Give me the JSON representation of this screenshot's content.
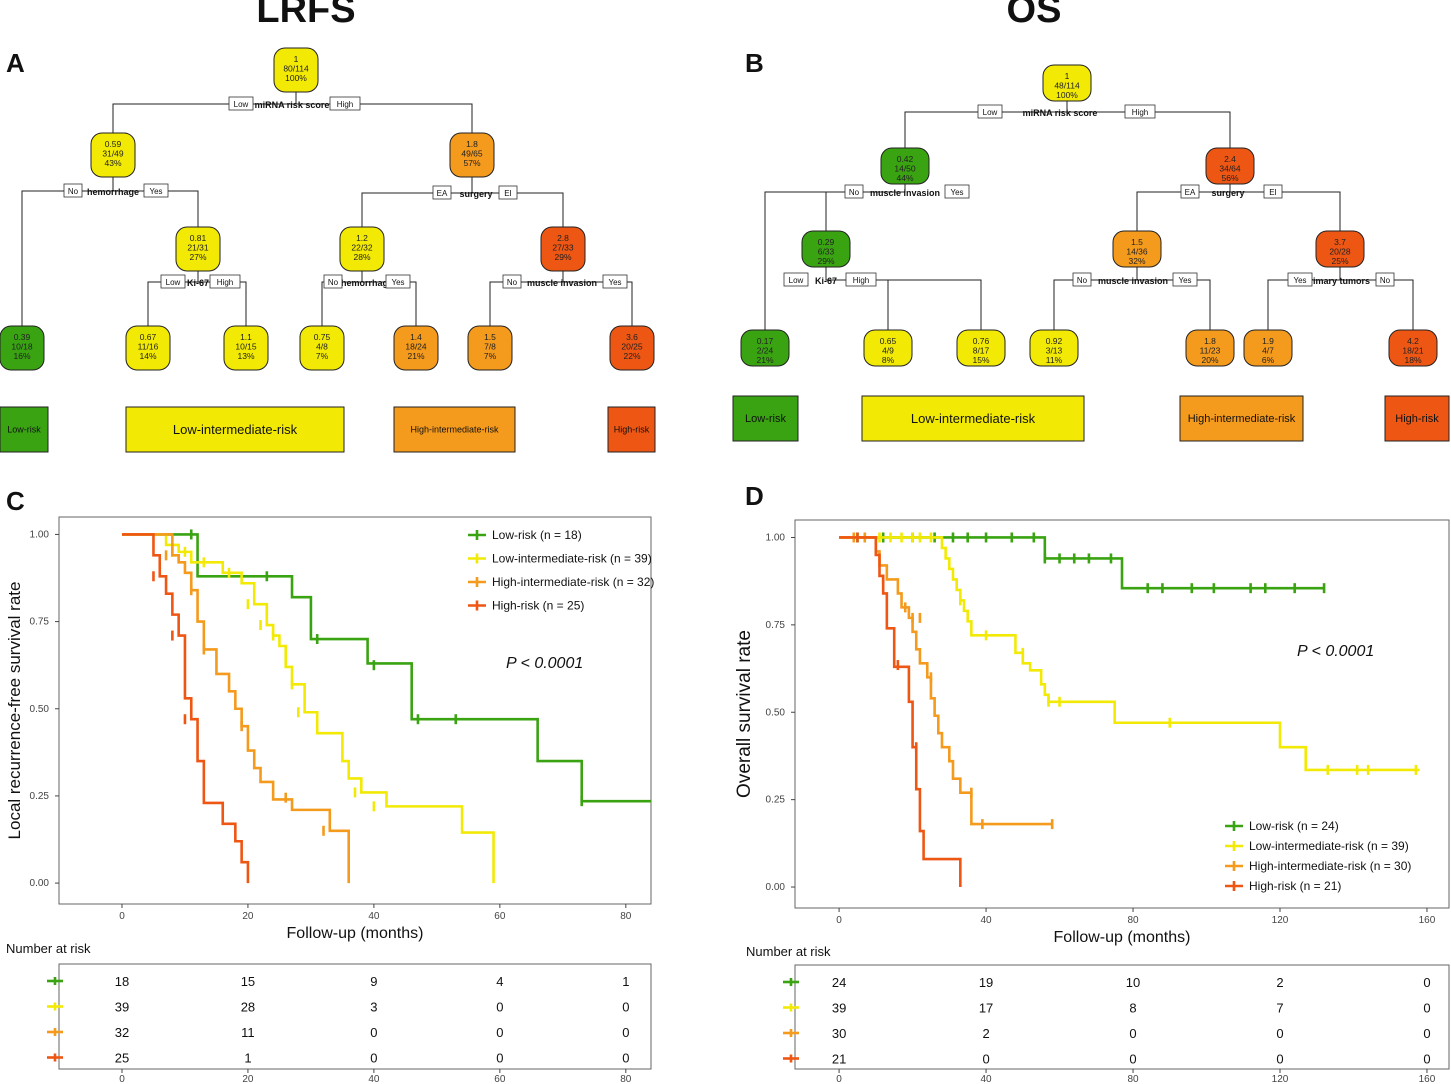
{
  "colors": {
    "low": "#3aa312",
    "lowint": "#f2ea05",
    "highint": "#f49a1d",
    "high": "#ee5614"
  },
  "titles": {
    "left": "LRFS",
    "right": "OS"
  },
  "panels": {
    "A": "A",
    "B": "B",
    "C": "C",
    "D": "D"
  },
  "treeA": {
    "nodes": [
      {
        "id": "a0",
        "lines": [
          "1",
          "80/114",
          "100%"
        ],
        "color": "lowint"
      },
      {
        "id": "a1",
        "lines": [
          "0.59",
          "31/49",
          "43%"
        ],
        "color": "lowint"
      },
      {
        "id": "a2",
        "lines": [
          "1.8",
          "49/65",
          "57%"
        ],
        "color": "highint"
      },
      {
        "id": "a3",
        "lines": [
          "0.81",
          "21/31",
          "27%"
        ],
        "color": "lowint"
      },
      {
        "id": "a4",
        "lines": [
          "1.2",
          "22/32",
          "28%"
        ],
        "color": "lowint"
      },
      {
        "id": "a5",
        "lines": [
          "2.8",
          "27/33",
          "29%"
        ],
        "color": "high"
      },
      {
        "id": "a6",
        "lines": [
          "0.39",
          "10/18",
          "16%"
        ],
        "color": "low"
      },
      {
        "id": "a7",
        "lines": [
          "0.67",
          "11/16",
          "14%"
        ],
        "color": "lowint"
      },
      {
        "id": "a8",
        "lines": [
          "1.1",
          "10/15",
          "13%"
        ],
        "color": "lowint"
      },
      {
        "id": "a9",
        "lines": [
          "0.75",
          "4/8",
          "7%"
        ],
        "color": "lowint"
      },
      {
        "id": "a10",
        "lines": [
          "1.4",
          "18/24",
          "21%"
        ],
        "color": "highint"
      },
      {
        "id": "a11",
        "lines": [
          "1.5",
          "7/8",
          "7%"
        ],
        "color": "highint"
      },
      {
        "id": "a12",
        "lines": [
          "3.6",
          "20/25",
          "22%"
        ],
        "color": "high"
      }
    ],
    "splits": [
      {
        "label": "miRNA risk score",
        "left": "Low",
        "right": "High"
      },
      {
        "label": "hemorrhage",
        "left": "No",
        "right": "Yes"
      },
      {
        "label": "surgery",
        "left": "EA",
        "right": "EI"
      },
      {
        "label": "Ki-67",
        "left": "Low",
        "right": "High"
      },
      {
        "label": "hemorrhage",
        "left": "No",
        "right": "Yes"
      },
      {
        "label": "muscle invasion",
        "left": "No",
        "right": "Yes"
      }
    ],
    "groups": [
      "Low-risk",
      "Low-intermediate-risk",
      "High-intermediate-risk",
      "High-risk"
    ]
  },
  "treeB": {
    "nodes": [
      {
        "id": "b0",
        "lines": [
          "1",
          "48/114",
          "100%"
        ],
        "color": "lowint"
      },
      {
        "id": "b1",
        "lines": [
          "0.42",
          "14/50",
          "44%"
        ],
        "color": "low"
      },
      {
        "id": "b2",
        "lines": [
          "2.4",
          "34/64",
          "56%"
        ],
        "color": "high"
      },
      {
        "id": "b3",
        "lines": [
          "0.29",
          "6/33",
          "29%"
        ],
        "color": "low"
      },
      {
        "id": "b4",
        "lines": [
          "1.5",
          "14/36",
          "32%"
        ],
        "color": "highint"
      },
      {
        "id": "b5",
        "lines": [
          "3.7",
          "20/28",
          "25%"
        ],
        "color": "high"
      },
      {
        "id": "b6",
        "lines": [
          "0.17",
          "2/24",
          "21%"
        ],
        "color": "low"
      },
      {
        "id": "b7",
        "lines": [
          "0.65",
          "4/9",
          "8%"
        ],
        "color": "lowint"
      },
      {
        "id": "b8",
        "lines": [
          "0.76",
          "8/17",
          "15%"
        ],
        "color": "lowint"
      },
      {
        "id": "b9",
        "lines": [
          "0.92",
          "3/13",
          "11%"
        ],
        "color": "lowint"
      },
      {
        "id": "b10",
        "lines": [
          "1.8",
          "11/23",
          "20%"
        ],
        "color": "highint"
      },
      {
        "id": "b11",
        "lines": [
          "1.9",
          "4/7",
          "6%"
        ],
        "color": "highint"
      },
      {
        "id": "b12",
        "lines": [
          "4.2",
          "18/21",
          "18%"
        ],
        "color": "high"
      }
    ],
    "splits": [
      {
        "label": "miRNA risk score",
        "left": "Low",
        "right": "High"
      },
      {
        "label": "muscle invasion",
        "left": "No",
        "right": "Yes"
      },
      {
        "label": "surgery",
        "left": "EA",
        "right": "EI"
      },
      {
        "label": "Ki-67",
        "left": "Low",
        "right": "High"
      },
      {
        "label": "muscle invasion",
        "left": "No",
        "right": "Yes"
      },
      {
        "label": "primary tumors",
        "left": "Yes",
        "right": "No"
      }
    ],
    "groups": [
      "Low-risk",
      "Low-intermediate-risk",
      "High-intermediate-risk",
      "High-risk"
    ]
  },
  "chart_data": [
    {
      "type": "line",
      "panel": "C",
      "title": "",
      "xlabel": "Follow-up (months)",
      "ylabel": "Local recurrence-free survival rate",
      "xlim": [
        -10,
        84
      ],
      "ylim": [
        -0.06,
        1.05
      ],
      "xticks": [
        0,
        20,
        40,
        60,
        80
      ],
      "yticks": [
        "0.00",
        "0.25",
        "0.50",
        "0.75",
        "1.00"
      ],
      "pvalue": "P < 0.0001",
      "series": [
        {
          "name": "Low-risk (n = 18)",
          "color": "low",
          "x": [
            0,
            11,
            12,
            26,
            27,
            30,
            39,
            46,
            66,
            73,
            84
          ],
          "y": [
            1,
            1,
            0.88,
            0.88,
            0.82,
            0.7,
            0.63,
            0.47,
            0.35,
            0.235,
            0.235
          ],
          "censor": [
            [
              11,
              1.0
            ],
            [
              23,
              0.88
            ],
            [
              31,
              0.7
            ],
            [
              40,
              0.625
            ],
            [
              47,
              0.47
            ],
            [
              53,
              0.47
            ],
            [
              73,
              0.235
            ]
          ]
        },
        {
          "name": "Low-intermediate-risk (n = 39)",
          "color": "lowint",
          "x": [
            0,
            6,
            7,
            9,
            11,
            16,
            19,
            21,
            23,
            24,
            25,
            26,
            27,
            29,
            31,
            35,
            36,
            38,
            42,
            54,
            59
          ],
          "y": [
            1,
            1,
            0.97,
            0.95,
            0.92,
            0.89,
            0.86,
            0.8,
            0.74,
            0.71,
            0.68,
            0.62,
            0.57,
            0.49,
            0.43,
            0.35,
            0.3,
            0.26,
            0.22,
            0.145,
            0.08
          ],
          "censor": [
            [
              8,
              0.95
            ],
            [
              10,
              0.95
            ],
            [
              13,
              0.92
            ],
            [
              17,
              0.89
            ],
            [
              20,
              0.8
            ],
            [
              22,
              0.74
            ],
            [
              24,
              0.71
            ],
            [
              27,
              0.57
            ],
            [
              28,
              0.49
            ],
            [
              37,
              0.26
            ],
            [
              40,
              0.22
            ]
          ],
          "end": [
            59,
            0
          ]
        },
        {
          "name": "High-intermediate-risk (n = 32)",
          "color": "highint",
          "x": [
            0,
            6,
            8,
            9,
            10,
            11,
            12,
            13,
            15,
            17,
            18,
            19,
            20,
            21,
            22,
            24,
            27,
            33,
            36
          ],
          "y": [
            1,
            1,
            0.94,
            0.92,
            0.89,
            0.84,
            0.75,
            0.67,
            0.6,
            0.55,
            0.5,
            0.45,
            0.38,
            0.33,
            0.29,
            0.24,
            0.21,
            0.15,
            0.06
          ],
          "censor": [
            [
              7,
              0.94
            ],
            [
              11,
              0.84
            ],
            [
              13,
              0.67
            ],
            [
              19,
              0.45
            ],
            [
              26,
              0.245
            ],
            [
              32,
              0.15
            ]
          ],
          "end": [
            36,
            0
          ]
        },
        {
          "name": "High-risk (n = 25)",
          "color": "high",
          "x": [
            0,
            3,
            5,
            6,
            7,
            8,
            9,
            10,
            11,
            12,
            13,
            14,
            16,
            18,
            19,
            20
          ],
          "y": [
            1,
            1,
            0.94,
            0.88,
            0.83,
            0.77,
            0.71,
            0.53,
            0.47,
            0.35,
            0.23,
            0.23,
            0.17,
            0.12,
            0.06,
            0.0
          ],
          "censor": [
            [
              5,
              0.88
            ],
            [
              8,
              0.71
            ],
            [
              10,
              0.47
            ]
          ],
          "end": [
            20,
            0
          ]
        }
      ],
      "risk_table": {
        "label": "Number at risk",
        "times": [
          0,
          20,
          40,
          60,
          80
        ],
        "rows": [
          [
            18,
            15,
            9,
            4,
            1
          ],
          [
            39,
            28,
            3,
            0,
            0
          ],
          [
            32,
            11,
            0,
            0,
            0
          ],
          [
            25,
            1,
            0,
            0,
            0
          ]
        ]
      }
    },
    {
      "type": "line",
      "panel": "D",
      "title": "",
      "xlabel": "Follow-up (months)",
      "ylabel": "Overall survival rate",
      "xlim": [
        -12,
        166
      ],
      "ylim": [
        -0.06,
        1.05
      ],
      "xticks": [
        0,
        40,
        80,
        120,
        160
      ],
      "yticks": [
        "0.00",
        "0.25",
        "0.50",
        "0.75",
        "1.00"
      ],
      "pvalue": "P < 0.0001",
      "series": [
        {
          "name": "Low-risk (n = 24)",
          "color": "low",
          "x": [
            0,
            55,
            56,
            76,
            77,
            132
          ],
          "y": [
            1,
            1,
            0.94,
            0.94,
            0.855,
            0.855
          ],
          "censor": [
            [
              5,
              1
            ],
            [
              12,
              1
            ],
            [
              20,
              1
            ],
            [
              26,
              1
            ],
            [
              31,
              1
            ],
            [
              35,
              1
            ],
            [
              40,
              1
            ],
            [
              47,
              1
            ],
            [
              53,
              1
            ],
            [
              56,
              0.94
            ],
            [
              60,
              0.94
            ],
            [
              64,
              0.94
            ],
            [
              68,
              0.94
            ],
            [
              74,
              0.94
            ],
            [
              84,
              0.855
            ],
            [
              88,
              0.855
            ],
            [
              96,
              0.855
            ],
            [
              102,
              0.855
            ],
            [
              112,
              0.855
            ],
            [
              116,
              0.855
            ],
            [
              124,
              0.855
            ],
            [
              132,
              0.855
            ]
          ]
        },
        {
          "name": "Low-intermediate-risk (n = 39)",
          "color": "lowint",
          "x": [
            0,
            27,
            28,
            29,
            30,
            31,
            32,
            33,
            34,
            35,
            36,
            39,
            48,
            49,
            50,
            52,
            55,
            56,
            57,
            58,
            75,
            120,
            127,
            158
          ],
          "y": [
            1,
            1,
            0.97,
            0.94,
            0.91,
            0.88,
            0.85,
            0.82,
            0.79,
            0.76,
            0.72,
            0.72,
            0.67,
            0.67,
            0.64,
            0.62,
            0.58,
            0.55,
            0.53,
            0.53,
            0.47,
            0.4,
            0.335,
            0.335
          ],
          "censor": [
            [
              11,
              1
            ],
            [
              14,
              1
            ],
            [
              17,
              1
            ],
            [
              20,
              1
            ],
            [
              22,
              1
            ],
            [
              25,
              1
            ],
            [
              33,
              0.82
            ],
            [
              40,
              0.72
            ],
            [
              50,
              0.67
            ],
            [
              57,
              0.53
            ],
            [
              60,
              0.53
            ],
            [
              90,
              0.47
            ],
            [
              133,
              0.335
            ],
            [
              141,
              0.335
            ],
            [
              144,
              0.335
            ],
            [
              157,
              0.335
            ]
          ]
        },
        {
          "name": "High-intermediate-risk (n = 30)",
          "color": "highint",
          "x": [
            0,
            9,
            10,
            11,
            13,
            16,
            17,
            19,
            20,
            21,
            22,
            24,
            25,
            26,
            27,
            28,
            30,
            31,
            33,
            35,
            36,
            58
          ],
          "y": [
            1,
            1,
            0.96,
            0.92,
            0.88,
            0.84,
            0.8,
            0.77,
            0.73,
            0.68,
            0.64,
            0.6,
            0.54,
            0.49,
            0.44,
            0.4,
            0.36,
            0.31,
            0.27,
            0.27,
            0.18,
            0.18
          ],
          "censor": [
            [
              4,
              1
            ],
            [
              7,
              1
            ],
            [
              12,
              0.88
            ],
            [
              18,
              0.8
            ],
            [
              20,
              0.77
            ],
            [
              22,
              0.77
            ],
            [
              25,
              0.6
            ],
            [
              36,
              0.27
            ],
            [
              39,
              0.18
            ],
            [
              58,
              0.18
            ]
          ]
        },
        {
          "name": "High-risk (n = 21)",
          "color": "high",
          "x": [
            0,
            9,
            10,
            11,
            12,
            13,
            15,
            17,
            19,
            20,
            21,
            22,
            23,
            33
          ],
          "y": [
            1,
            1,
            0.95,
            0.89,
            0.84,
            0.74,
            0.63,
            0.63,
            0.53,
            0.4,
            0.28,
            0.16,
            0.08,
            0.08
          ],
          "censor": [
            [
              5,
              1
            ],
            [
              16,
              0.635
            ],
            [
              21,
              0.4
            ]
          ],
          "end": [
            33,
            0
          ]
        }
      ],
      "risk_table": {
        "label": "Number at risk",
        "times": [
          0,
          40,
          80,
          120,
          160
        ],
        "rows": [
          [
            24,
            19,
            10,
            2,
            0
          ],
          [
            39,
            17,
            8,
            7,
            0
          ],
          [
            30,
            2,
            0,
            0,
            0
          ],
          [
            21,
            0,
            0,
            0,
            0
          ]
        ]
      }
    }
  ]
}
